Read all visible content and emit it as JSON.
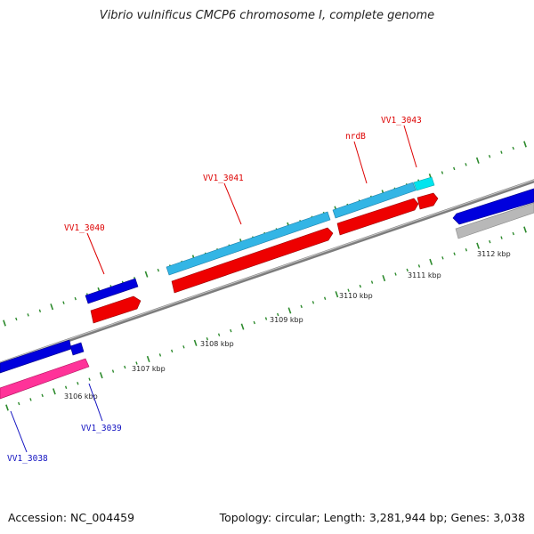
{
  "title": "Vibrio vulnificus CMCP6 chromosome I, complete genome",
  "footer": {
    "accession": "Accession: NC_004459",
    "topology": "Topology: circular; Length: 3,281,944 bp; Genes: 3,038"
  },
  "colors": {
    "backbone": "#8a8a8a",
    "ticks": "#2e8b2e",
    "forward_gene": "#0000dd",
    "forward_gene_light": "#33b5e5",
    "reverse_gene": "#ee0000",
    "rna_gene": "#ff3399",
    "cyan_gene": "#00e5ee",
    "grey_gene": "#b8b8b8",
    "label_red": "#dd0000",
    "label_blue": "#1010c0"
  },
  "ticks": [
    {
      "label": "3106 kbp"
    },
    {
      "label": "3107 kbp"
    },
    {
      "label": "3108 kbp"
    },
    {
      "label": "3109 kbp"
    },
    {
      "label": "3110 kbp"
    },
    {
      "label": "3111 kbp"
    },
    {
      "label": "3112 kbp"
    }
  ],
  "gene_labels": [
    {
      "text": "VV1_3040",
      "color": "red"
    },
    {
      "text": "VV1_3041",
      "color": "red"
    },
    {
      "text": "nrdB",
      "color": "red"
    },
    {
      "text": "VV1_3043",
      "color": "red"
    },
    {
      "text": "VV1_3039",
      "color": "blue"
    },
    {
      "text": "VV1_3038",
      "color": "blue"
    }
  ]
}
